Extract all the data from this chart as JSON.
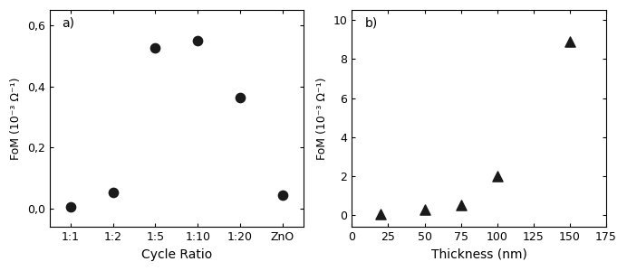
{
  "panel_a": {
    "x_labels": [
      "1:1",
      "1:2",
      "1:5",
      "1:10",
      "1:20",
      "ZnO"
    ],
    "y_values": [
      0.005,
      0.055,
      0.525,
      0.55,
      0.365,
      0.045
    ],
    "ylabel": "FoM (10⁻³ Ω⁻¹)",
    "xlabel": "Cycle Ratio",
    "label": "a)",
    "ylim": [
      -0.06,
      0.65
    ],
    "yticks": [
      0.0,
      0.2,
      0.4,
      0.6
    ],
    "ytick_labels": [
      "0,0",
      "0,2",
      "0,4",
      "0,6"
    ]
  },
  "panel_b": {
    "x_values": [
      20,
      50,
      75,
      100,
      150
    ],
    "y_values": [
      0.05,
      0.28,
      0.55,
      2.0,
      8.9
    ],
    "ylabel": "FoM (10⁻³ Ω⁻¹)",
    "xlabel": "Thickness (nm)",
    "label": "b)",
    "xlim": [
      0,
      175
    ],
    "ylim": [
      -0.6,
      10.5
    ],
    "yticks": [
      0,
      2,
      4,
      6,
      8,
      10
    ],
    "xticks": [
      0,
      25,
      50,
      75,
      100,
      125,
      150,
      175
    ]
  },
  "marker_color": "#1a1a1a",
  "bg_color": "#ffffff",
  "tick_fontsize": 9,
  "label_fontsize": 10,
  "annot_fontsize": 10
}
